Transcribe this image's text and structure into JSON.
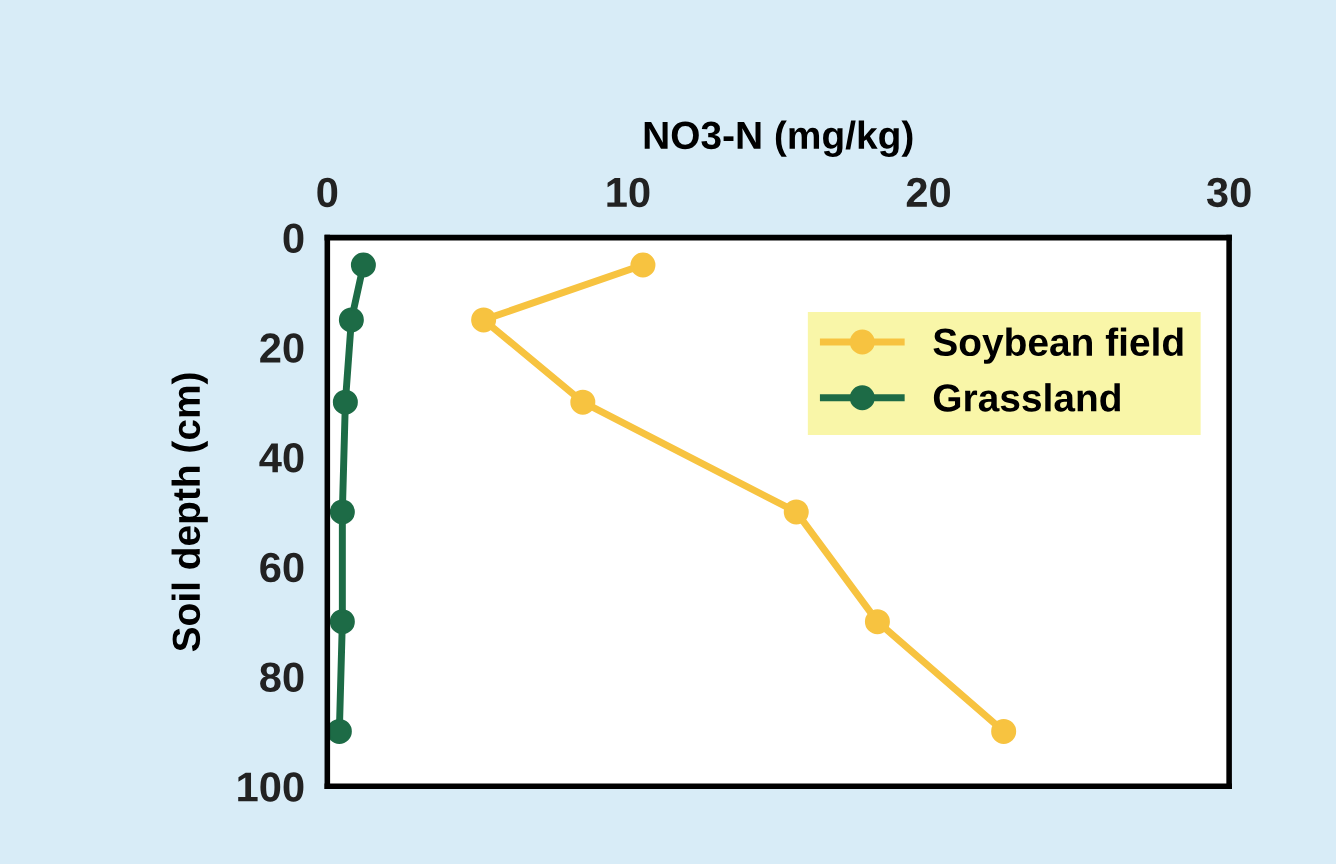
{
  "chart_data": {
    "type": "line",
    "xlabel": "NO3-N (mg/kg)",
    "ylabel": "Soil depth (cm)",
    "xlim": [
      0,
      30
    ],
    "xticks": [
      0,
      10,
      20,
      30
    ],
    "ylim": [
      100,
      0
    ],
    "yticks": [
      0,
      20,
      40,
      60,
      80,
      100
    ],
    "marker": "circle",
    "legend": "top right",
    "grid": false,
    "series": [
      {
        "name": "Soybean field",
        "color": "#f7c340",
        "x": [
          10.5,
          5.2,
          8.5,
          15.6,
          18.3,
          22.5
        ],
        "values": [
          5,
          15,
          30,
          50,
          70,
          90
        ]
      },
      {
        "name": "Grassland",
        "color": "#1d6b46",
        "x": [
          1.2,
          0.8,
          0.6,
          0.5,
          0.5,
          0.4
        ],
        "values": [
          5,
          15,
          30,
          50,
          70,
          90
        ]
      }
    ]
  }
}
